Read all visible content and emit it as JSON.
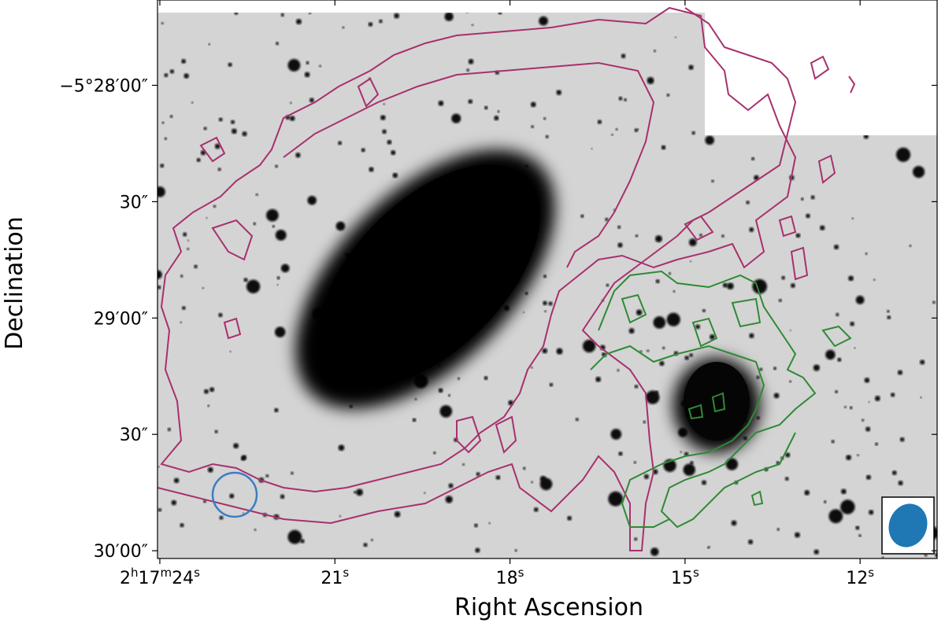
{
  "chart_data": {
    "type": "image",
    "xlabel": "Right Ascension",
    "ylabel": "Declination",
    "xlim": [
      24.04,
      10.68
    ],
    "xticks": [
      {
        "value": 24,
        "label": "2h17m24s"
      },
      {
        "value": 21,
        "label": "21s"
      },
      {
        "value": 18,
        "label": "18s"
      },
      {
        "value": 15,
        "label": "15s"
      },
      {
        "value": 12,
        "label": "12s"
      }
    ],
    "ylim": [
      -19802,
      -19658
    ],
    "yticks": [
      {
        "value": -19680,
        "label": "−5°28′00″"
      },
      {
        "value": -19710,
        "label": "30″"
      },
      {
        "value": -19740,
        "label": "29′00″"
      },
      {
        "value": -19770,
        "label": "30″"
      },
      {
        "value": -19800,
        "label": "30′00″"
      }
    ]
  }
}
